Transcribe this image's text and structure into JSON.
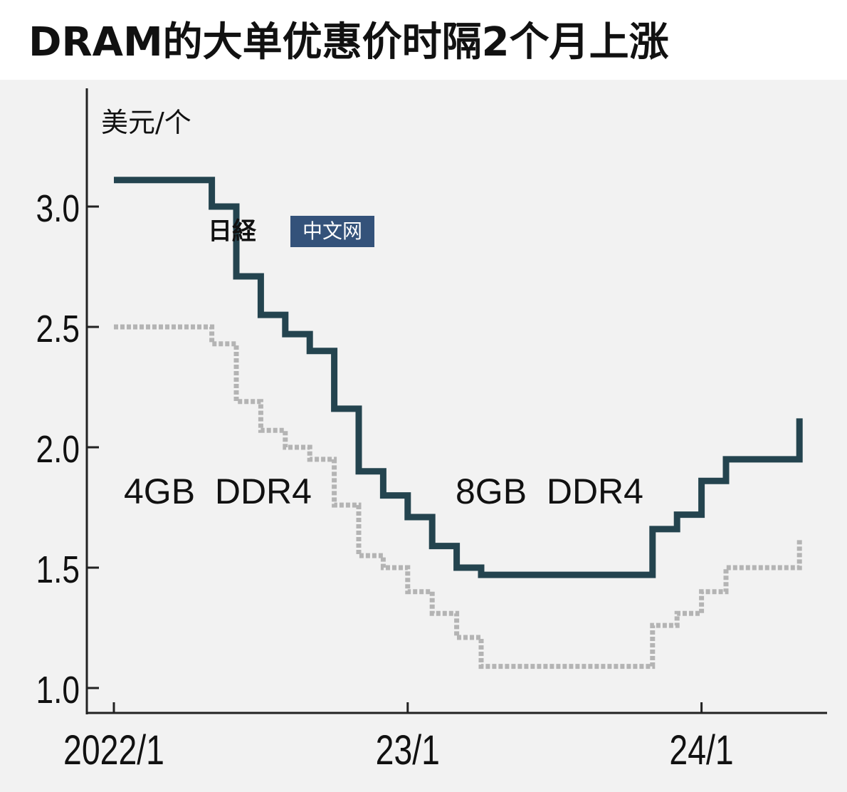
{
  "title": "DRAM的大单优惠价时隔2个月上涨",
  "watermark": {
    "mark_text": "日経",
    "box_text": "中文网",
    "box_color": "#34527a"
  },
  "chart_data": {
    "type": "line",
    "subtype": "step",
    "title": "DRAM的大单优惠价时隔2个月上涨",
    "ylabel": "美元/个",
    "xlabel": "",
    "ylim": [
      1.0,
      3.4
    ],
    "yticks": [
      1.0,
      1.5,
      2.0,
      2.5,
      3.0
    ],
    "ytick_labels": [
      "1.0",
      "1.5",
      "2.0",
      "2.5",
      "3.0"
    ],
    "xticks": [
      0,
      12,
      24
    ],
    "xtick_labels": [
      "2022/1",
      "23/1",
      "24/1"
    ],
    "x_unit": "months since 2022/1",
    "grid": false,
    "series": [
      {
        "name": "8GB DDR4",
        "color": "#24444f",
        "style": "solid",
        "points": [
          [
            0,
            3.11
          ],
          [
            4,
            3.11
          ],
          [
            4,
            3.0
          ],
          [
            5,
            3.0
          ],
          [
            5,
            2.71
          ],
          [
            6,
            2.71
          ],
          [
            6,
            2.55
          ],
          [
            7,
            2.55
          ],
          [
            7,
            2.47
          ],
          [
            8,
            2.47
          ],
          [
            8,
            2.4
          ],
          [
            9,
            2.4
          ],
          [
            9,
            2.16
          ],
          [
            10,
            2.16
          ],
          [
            10,
            1.9
          ],
          [
            11,
            1.9
          ],
          [
            11,
            1.8
          ],
          [
            12,
            1.8
          ],
          [
            12,
            1.71
          ],
          [
            13,
            1.71
          ],
          [
            13,
            1.59
          ],
          [
            14,
            1.59
          ],
          [
            14,
            1.5
          ],
          [
            15,
            1.5
          ],
          [
            15,
            1.47
          ],
          [
            22,
            1.47
          ],
          [
            22,
            1.66
          ],
          [
            23,
            1.66
          ],
          [
            23,
            1.72
          ],
          [
            24,
            1.72
          ],
          [
            24,
            1.86
          ],
          [
            25,
            1.86
          ],
          [
            25,
            1.95
          ],
          [
            28,
            1.95
          ],
          [
            28,
            2.12
          ]
        ]
      },
      {
        "name": "4GB DDR4",
        "color": "#b4b4b4",
        "style": "dashed",
        "points": [
          [
            0,
            2.5
          ],
          [
            4,
            2.5
          ],
          [
            4,
            2.43
          ],
          [
            5,
            2.43
          ],
          [
            5,
            2.19
          ],
          [
            6,
            2.19
          ],
          [
            6,
            2.07
          ],
          [
            7,
            2.07
          ],
          [
            7,
            2.0
          ],
          [
            8,
            2.0
          ],
          [
            8,
            1.95
          ],
          [
            9,
            1.95
          ],
          [
            9,
            1.76
          ],
          [
            10,
            1.76
          ],
          [
            10,
            1.55
          ],
          [
            11,
            1.55
          ],
          [
            11,
            1.5
          ],
          [
            12,
            1.5
          ],
          [
            12,
            1.4
          ],
          [
            13,
            1.4
          ],
          [
            13,
            1.31
          ],
          [
            14,
            1.31
          ],
          [
            14,
            1.21
          ],
          [
            15,
            1.21
          ],
          [
            15,
            1.09
          ],
          [
            22,
            1.09
          ],
          [
            22,
            1.26
          ],
          [
            23,
            1.26
          ],
          [
            23,
            1.31
          ],
          [
            24,
            1.31
          ],
          [
            24,
            1.4
          ],
          [
            25,
            1.4
          ],
          [
            25,
            1.5
          ],
          [
            28,
            1.5
          ],
          [
            28,
            1.62
          ]
        ]
      }
    ],
    "annotations": [
      "4GB  DDR4",
      "8GB  DDR4"
    ]
  }
}
